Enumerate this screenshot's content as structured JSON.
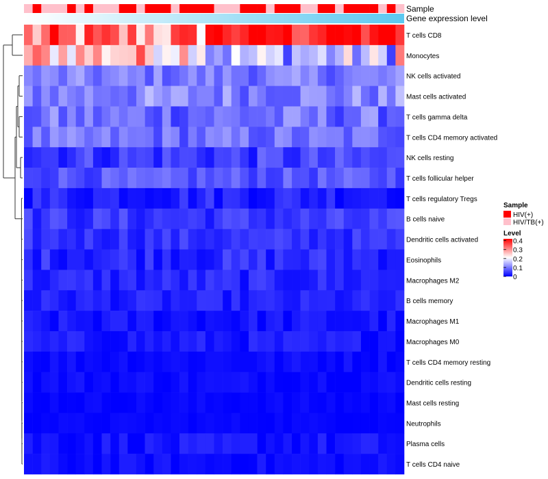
{
  "chart_data": {
    "type": "heatmap",
    "title": "",
    "rows": [
      "T cells CD8",
      "Monocytes",
      "NK cells activated",
      "Mast cells activated",
      "T cells gamma delta",
      "T cells CD4 memory activated",
      "NK cells resting",
      "T cells follicular helper",
      "T cells regulatory  Tregs",
      "B cells naive",
      "Dendritic cells activated",
      "Eosinophils",
      "Macrophages M2",
      "B cells memory",
      "Macrophages M1",
      "Macrophages M0",
      "T cells CD4 memory resting",
      "Dendritic cells resting",
      "Mast cells resting",
      "Neutrophils",
      "Plasma cells",
      "T cells CD4 naive"
    ],
    "column_count": 44,
    "column_annotations": {
      "sample_label": "Sample",
      "expression_label": "Gene expression level",
      "sample_groups": [
        "P",
        "H",
        "P",
        "P",
        "P",
        "H",
        "P",
        "H",
        "P",
        "P",
        "P",
        "H",
        "H",
        "P",
        "H",
        "H",
        "H",
        "P",
        "H",
        "H",
        "H",
        "H",
        "P",
        "P",
        "P",
        "H",
        "H",
        "H",
        "P",
        "H",
        "H",
        "H",
        "P",
        "P",
        "H",
        "H",
        "P",
        "H",
        "H",
        "H",
        "H",
        "P",
        "H",
        "P"
      ],
      "expression_gradient": [
        "#ffffff",
        "#5bc8f0"
      ]
    },
    "legend": {
      "sample": {
        "title": "Sample",
        "entries": [
          {
            "label": "HIV(+)",
            "color": "#ff0000"
          },
          {
            "label": "HIV/TB(+)",
            "color": "#ffc0cb"
          }
        ]
      },
      "level": {
        "title": "Level",
        "ticks": [
          "0.4",
          "0.3",
          "0.2",
          "0.1",
          "0"
        ],
        "tick_values": [
          0.4,
          0.3,
          0.2,
          0.1,
          0
        ],
        "range": [
          0,
          0.42
        ],
        "colors": {
          "low": "#0000ff",
          "mid": "#ffffff",
          "high": "#ff0000"
        }
      }
    },
    "row_means": [
      0.3,
      0.27,
      0.1,
      0.11,
      0.09,
      0.09,
      0.05,
      0.07,
      0.03,
      0.045,
      0.04,
      0.035,
      0.03,
      0.025,
      0.015,
      0.02,
      0.01,
      0.01,
      0.005,
      0.005,
      0.015,
      0.01
    ],
    "row_spread": [
      0.12,
      0.1,
      0.04,
      0.05,
      0.05,
      0.04,
      0.04,
      0.03,
      0.03,
      0.03,
      0.025,
      0.03,
      0.025,
      0.02,
      0.02,
      0.02,
      0.012,
      0.012,
      0.008,
      0.006,
      0.02,
      0.015
    ]
  }
}
